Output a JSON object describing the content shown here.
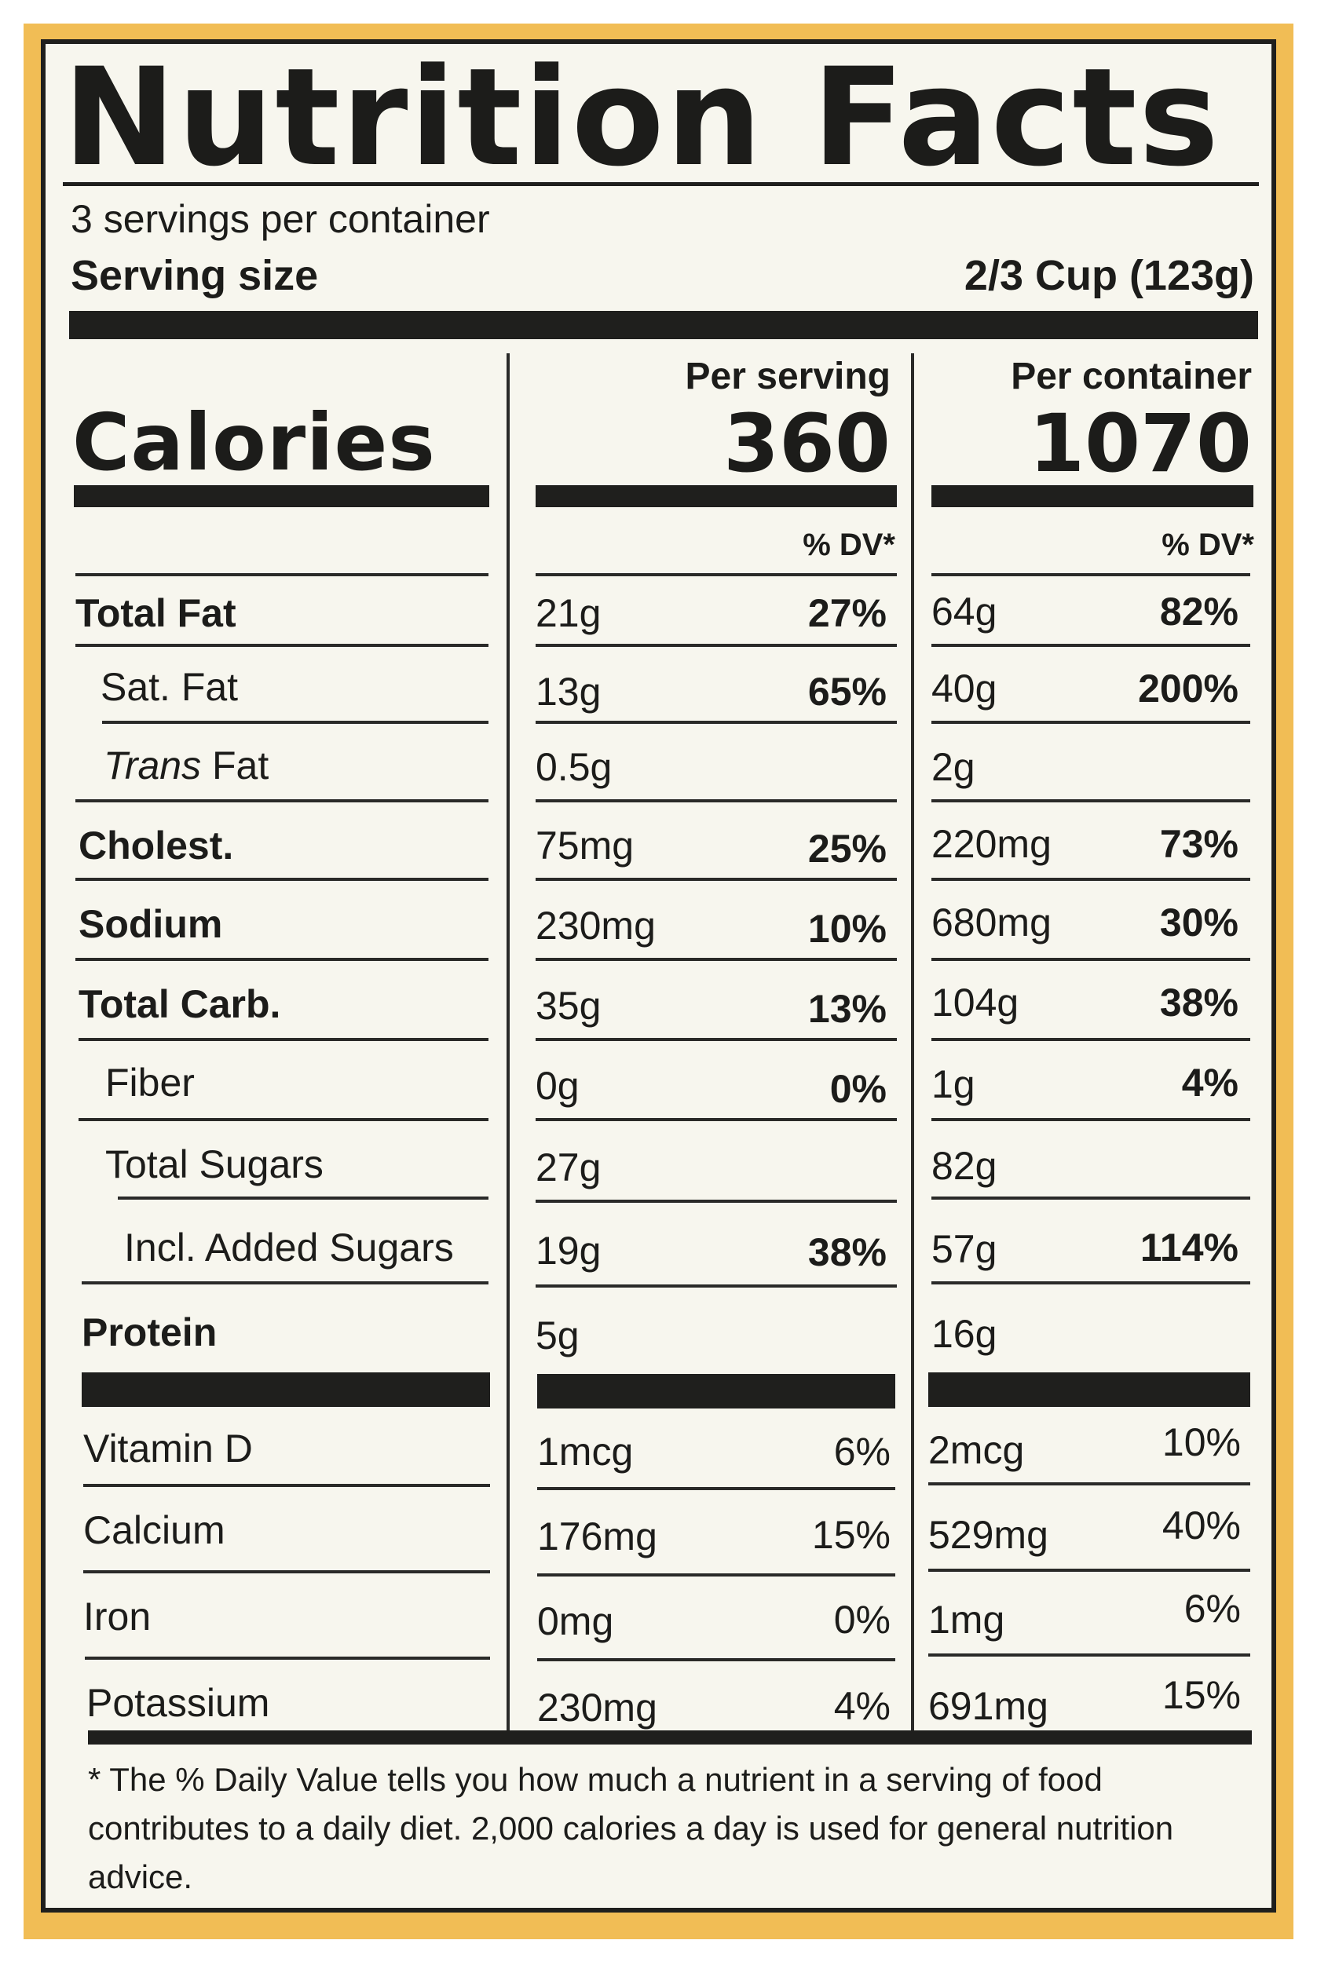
{
  "label": {
    "title": "Nutrition Facts",
    "servings_per_container": "3 servings per container",
    "serving_size_label": "Serving size",
    "serving_size_value": "2/3 Cup (123g)",
    "calories_label": "Calories",
    "per_serving_label": "Per serving",
    "per_container_label": "Per container",
    "calories_per_serving": "360",
    "calories_per_container": "1070",
    "dv_header": "% DV*"
  },
  "nutrients": [
    {
      "label": "Total Fat",
      "serving_amount": "21g",
      "serving_dv": "27%",
      "container_amount": "64g",
      "container_dv": "82%"
    },
    {
      "label": "Sat. Fat",
      "serving_amount": "13g",
      "serving_dv": "65%",
      "container_amount": "40g",
      "container_dv": "200%"
    },
    {
      "label_italic": "Trans",
      "label": " Fat",
      "serving_amount": "0.5g",
      "serving_dv": "",
      "container_amount": "2g",
      "container_dv": ""
    },
    {
      "label": "Cholest.",
      "serving_amount": "75mg",
      "serving_dv": "25%",
      "container_amount": "220mg",
      "container_dv": "73%"
    },
    {
      "label": "Sodium",
      "serving_amount": "230mg",
      "serving_dv": "10%",
      "container_amount": "680mg",
      "container_dv": "30%"
    },
    {
      "label": "Total Carb.",
      "serving_amount": "35g",
      "serving_dv": "13%",
      "container_amount": "104g",
      "container_dv": "38%"
    },
    {
      "label": "Fiber",
      "serving_amount": "0g",
      "serving_dv": "0%",
      "container_amount": "1g",
      "container_dv": "4%"
    },
    {
      "label": "Total Sugars",
      "serving_amount": "27g",
      "serving_dv": "",
      "container_amount": "82g",
      "container_dv": ""
    },
    {
      "label": "Incl. Added Sugars",
      "serving_amount": "19g",
      "serving_dv": "38%",
      "container_amount": "57g",
      "container_dv": "114%"
    },
    {
      "label": "Protein",
      "serving_amount": "5g",
      "serving_dv": "",
      "container_amount": "16g",
      "container_dv": ""
    }
  ],
  "vitamins": [
    {
      "label": "Vitamin D",
      "serving_amount": "1mcg",
      "serving_dv": "6%",
      "container_amount": "2mcg",
      "container_dv": "10%"
    },
    {
      "label": "Calcium",
      "serving_amount": "176mg",
      "serving_dv": "15%",
      "container_amount": "529mg",
      "container_dv": "40%"
    },
    {
      "label": "Iron",
      "serving_amount": "0mg",
      "serving_dv": "0%",
      "container_amount": "1mg",
      "container_dv": "6%"
    },
    {
      "label": "Potassium",
      "serving_amount": "230mg",
      "serving_dv": "4%",
      "container_amount": "691mg",
      "container_dv": "15%"
    }
  ],
  "footnote": "* The % Daily Value tells you how much a nutrient in a serving of food contributes to a daily diet. 2,000 calories a day is used for general nutrition advice.",
  "colors": {
    "label_background": "#f7f6ee",
    "package_orange": "#f1bd55",
    "ink": "#1f1f1d"
  }
}
